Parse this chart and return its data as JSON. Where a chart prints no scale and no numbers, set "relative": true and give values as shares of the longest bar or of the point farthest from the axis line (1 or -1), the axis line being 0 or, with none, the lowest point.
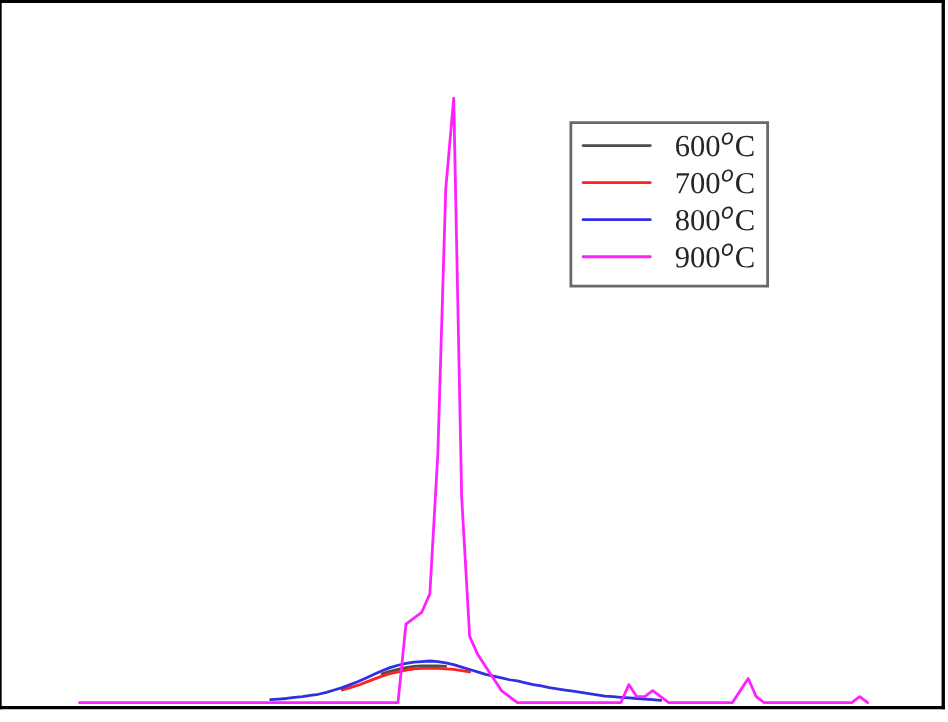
{
  "chart_data": {
    "type": "line",
    "relative": true,
    "legend": "top right",
    "categories": [
      null,
      null,
      null,
      null,
      null,
      null,
      null,
      null,
      null,
      null,
      null,
      null,
      null,
      null,
      null,
      null,
      null,
      null,
      null,
      null,
      null,
      null,
      null,
      null,
      null,
      null,
      null,
      null,
      null,
      null,
      null,
      null,
      null,
      null,
      null,
      null,
      null,
      null,
      null,
      null,
      null,
      null,
      null,
      null,
      null,
      null,
      null,
      null,
      null,
      null,
      null,
      null,
      null,
      null,
      null,
      null,
      null,
      null,
      null,
      null,
      null,
      null,
      null,
      null,
      null,
      null,
      null,
      null,
      null,
      null,
      null,
      null,
      null,
      null,
      null,
      null,
      null,
      null,
      null,
      null,
      null,
      null,
      null,
      null,
      null,
      null,
      null,
      null,
      null,
      null,
      null,
      null,
      null,
      null,
      null,
      null,
      null,
      null,
      null,
      null
    ],
    "series": [
      {
        "name": "600$^{o}$C",
        "color": "#4d4d4d",
        "values": [
          null,
          null,
          null,
          null,
          null,
          null,
          null,
          null,
          null,
          null,
          null,
          null,
          null,
          null,
          null,
          null,
          null,
          null,
          null,
          null,
          null,
          null,
          null,
          null,
          null,
          null,
          null,
          null,
          null,
          null,
          null,
          null,
          null,
          null,
          null,
          null,
          null,
          null,
          0.048,
          0.052,
          0.055,
          0.058,
          0.06,
          0.061,
          0.061,
          0.061,
          0.06,
          null,
          null,
          null,
          null,
          null,
          null,
          null,
          null,
          null,
          null,
          null,
          null,
          null,
          null,
          null,
          null,
          null,
          null,
          null,
          null,
          null,
          null,
          null,
          null,
          null,
          null,
          null,
          null,
          null,
          null,
          null,
          null,
          null,
          null,
          null,
          null,
          null,
          null,
          null,
          null,
          null,
          null,
          null,
          null,
          null,
          null,
          null,
          null,
          null,
          null,
          null,
          null,
          null
        ]
      },
      {
        "name": "700$^{o}$C",
        "color": "#ff2020",
        "values": [
          null,
          null,
          null,
          null,
          null,
          null,
          null,
          null,
          null,
          null,
          null,
          null,
          null,
          null,
          null,
          null,
          null,
          null,
          null,
          null,
          null,
          null,
          null,
          null,
          null,
          null,
          null,
          null,
          null,
          null,
          null,
          null,
          null,
          0.021,
          0.025,
          0.029,
          0.034,
          0.039,
          0.044,
          0.048,
          0.051,
          0.054,
          0.056,
          0.057,
          0.057,
          0.057,
          0.056,
          0.055,
          0.053,
          0.051,
          null,
          null,
          null,
          null,
          null,
          null,
          null,
          null,
          null,
          null,
          null,
          null,
          null,
          null,
          null,
          null,
          null,
          null,
          null,
          null,
          null,
          null,
          null,
          null,
          null,
          null,
          null,
          null,
          null,
          null,
          null,
          null,
          null,
          null,
          null,
          null,
          null,
          null,
          null,
          null,
          null,
          null,
          null,
          null,
          null,
          null,
          null,
          null,
          null,
          null
        ]
      },
      {
        "name": "800$^{o}$C",
        "color": "#3030e0",
        "values": [
          null,
          null,
          null,
          null,
          null,
          null,
          null,
          null,
          null,
          null,
          null,
          null,
          null,
          null,
          null,
          null,
          null,
          null,
          null,
          null,
          null,
          null,
          null,
          null,
          0.005,
          0.006,
          0.007,
          0.009,
          0.01,
          0.012,
          0.014,
          0.017,
          0.021,
          0.025,
          0.03,
          0.035,
          0.041,
          0.047,
          0.053,
          0.058,
          0.062,
          0.065,
          0.067,
          0.068,
          0.069,
          0.068,
          0.066,
          0.063,
          0.059,
          0.055,
          0.051,
          0.047,
          0.044,
          0.041,
          0.038,
          0.036,
          0.033,
          0.03,
          0.028,
          0.025,
          0.023,
          0.021,
          0.019,
          0.017,
          0.015,
          0.013,
          0.011,
          0.01,
          0.009,
          0.008,
          0.007,
          0.006,
          0.005,
          0.004,
          null,
          null,
          null,
          null,
          null,
          null,
          null,
          null,
          null,
          null,
          null,
          null,
          null,
          null,
          null,
          null,
          null,
          null,
          null,
          null,
          null,
          null,
          null,
          null,
          null,
          null
        ]
      },
      {
        "name": "900$^{o}$C",
        "color": "#ff20ff",
        "values": [
          0,
          0,
          0,
          0,
          0,
          0,
          0,
          0,
          0,
          0,
          0,
          0,
          0,
          0,
          0,
          0,
          0,
          0,
          0,
          0,
          0,
          0,
          0,
          0,
          0,
          0,
          0,
          0,
          0,
          0,
          0,
          0,
          0,
          0,
          0,
          0,
          0,
          0,
          0,
          0,
          0,
          0.13,
          0.14,
          0.15,
          0.18,
          0.41,
          0.85,
          1,
          0.34,
          0.11,
          0.08,
          0.06,
          0.04,
          0.02,
          0.01,
          0,
          0,
          0,
          0,
          0,
          0,
          0,
          0,
          0,
          0,
          0,
          0,
          0,
          0,
          0.03,
          0.01,
          0.01,
          0.02,
          0.01,
          0,
          0,
          0,
          0,
          0,
          0,
          0,
          0,
          0,
          0.02,
          0.04,
          0.01,
          0,
          0,
          0,
          0,
          0,
          0,
          0,
          0,
          0,
          0,
          0,
          0,
          0.01,
          0
        ]
      }
    ]
  }
}
